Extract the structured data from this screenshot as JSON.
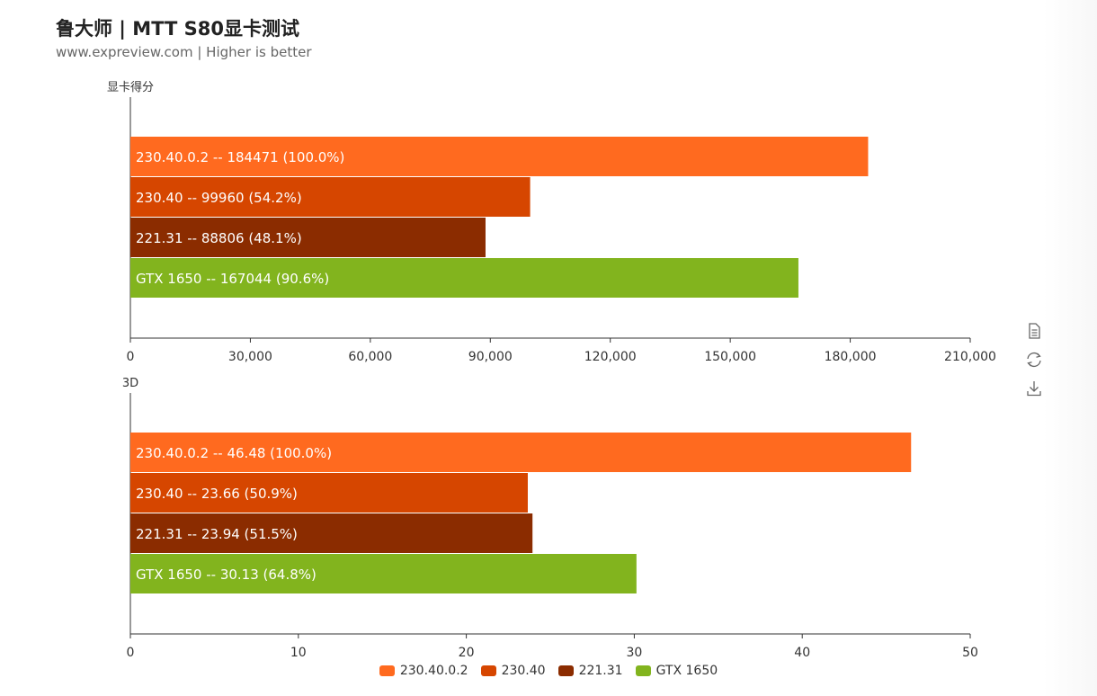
{
  "header": {
    "title": "鲁大师 | MTT S80显卡测试",
    "subtitle": "www.expreview.com | Higher is better"
  },
  "toolbox": {
    "icons": [
      "data-view-icon",
      "restore-icon",
      "save-image-icon"
    ]
  },
  "chart_data": {
    "type": "bar",
    "orientation": "horizontal",
    "series_names": [
      "230.40.0.2",
      "230.40",
      "221.31",
      "GTX 1650"
    ],
    "colors": [
      "#FF6A1F",
      "#D64600",
      "#8B2C00",
      "#82B41E"
    ],
    "legend_position": "bottom-center",
    "panels": [
      {
        "axis_name": "显卡得分",
        "xlim": [
          0,
          210000
        ],
        "ticks": [
          "0",
          "30,000",
          "60,000",
          "90,000",
          "120,000",
          "150,000",
          "180,000",
          "210,000"
        ],
        "tick_values": [
          0,
          30000,
          60000,
          90000,
          120000,
          150000,
          180000,
          210000
        ],
        "values": [
          184471,
          99960,
          88806,
          167044
        ],
        "labels": [
          "230.40.0.2  --  184471 (100.0%)",
          "230.40  --  99960 (54.2%)",
          "221.31  --  88806 (48.1%)",
          "GTX 1650  --  167044 (90.6%)"
        ]
      },
      {
        "axis_name": "3D",
        "xlim": [
          0,
          50
        ],
        "ticks": [
          "0",
          "10",
          "20",
          "30",
          "40",
          "50"
        ],
        "tick_values": [
          0,
          10,
          20,
          30,
          40,
          50
        ],
        "values": [
          46.48,
          23.66,
          23.94,
          30.13
        ],
        "labels": [
          "230.40.0.2  --  46.48 (100.0%)",
          "230.40  --  23.66 (50.9%)",
          "221.31  --  23.94 (51.5%)",
          "GTX 1650  --  30.13 (64.8%)"
        ]
      }
    ]
  }
}
